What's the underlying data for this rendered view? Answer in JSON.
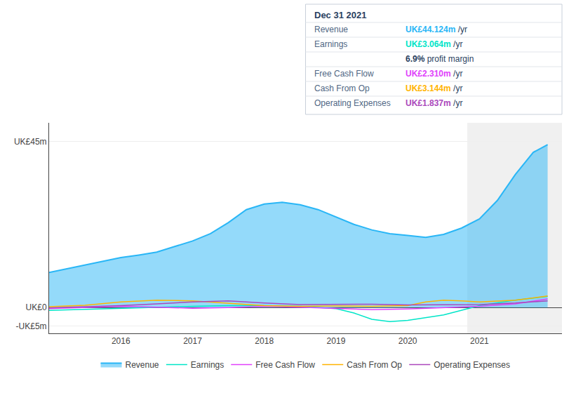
{
  "chart_data": {
    "type": "line",
    "title": "Dec 31 2021",
    "series": [
      {
        "name": "Revenue",
        "type": "area",
        "color": "#29b6f6",
        "x": [
          2015.0,
          2015.25,
          2015.5,
          2015.75,
          2016.0,
          2016.25,
          2016.5,
          2016.75,
          2017.0,
          2017.25,
          2017.5,
          2017.75,
          2018.0,
          2018.25,
          2018.5,
          2018.75,
          2019.0,
          2019.25,
          2019.5,
          2019.75,
          2020.0,
          2020.25,
          2020.5,
          2020.75,
          2021.0,
          2021.25,
          2021.5,
          2021.75,
          2021.95
        ],
        "values": [
          9.5,
          10.5,
          11.5,
          12.5,
          13.5,
          14.2,
          15.0,
          16.5,
          18.0,
          20.0,
          23.0,
          26.5,
          28.0,
          28.5,
          27.8,
          26.5,
          24.5,
          22.5,
          21.0,
          20.0,
          19.5,
          19.0,
          19.8,
          21.5,
          24.0,
          29.0,
          36.0,
          42.0,
          44.1
        ]
      },
      {
        "name": "Earnings",
        "type": "line",
        "color": "#00e5c8",
        "x": [
          2015.0,
          2015.5,
          2016.0,
          2016.5,
          2017.0,
          2017.5,
          2018.0,
          2018.5,
          2019.0,
          2019.25,
          2019.5,
          2019.75,
          2020.0,
          2020.5,
          2021.0,
          2021.5,
          2021.95
        ],
        "values": [
          -0.8,
          -0.5,
          -0.2,
          0.1,
          0.3,
          0.5,
          0.5,
          0.3,
          -0.3,
          -1.5,
          -3.2,
          -3.8,
          -3.5,
          -2.0,
          0.5,
          2.0,
          3.0
        ]
      },
      {
        "name": "Free Cash Flow",
        "type": "line",
        "color": "#e040fb",
        "x": [
          2015.0,
          2015.5,
          2016.0,
          2016.5,
          2017.0,
          2017.5,
          2018.0,
          2018.5,
          2019.0,
          2019.5,
          2020.0,
          2020.5,
          2021.0,
          2021.5,
          2021.95
        ],
        "values": [
          -0.3,
          0.0,
          0.3,
          0.1,
          -0.2,
          0.0,
          0.3,
          0.1,
          -0.3,
          -0.6,
          -0.4,
          -0.1,
          0.3,
          1.0,
          2.3
        ]
      },
      {
        "name": "Cash From Op",
        "type": "line",
        "color": "#ffb300",
        "x": [
          2015.0,
          2015.5,
          2016.0,
          2016.5,
          2017.0,
          2017.5,
          2018.0,
          2018.5,
          2019.0,
          2019.5,
          2020.0,
          2020.25,
          2020.5,
          2020.75,
          2021.0,
          2021.5,
          2021.95
        ],
        "values": [
          0.2,
          0.6,
          1.5,
          2.0,
          1.8,
          1.2,
          0.5,
          0.3,
          0.4,
          0.3,
          0.5,
          1.5,
          2.0,
          1.8,
          1.5,
          2.0,
          3.1
        ]
      },
      {
        "name": "Operating Expenses",
        "type": "line",
        "color": "#ab47bc",
        "x": [
          2015.0,
          2015.5,
          2016.0,
          2016.5,
          2017.0,
          2017.5,
          2018.0,
          2018.5,
          2019.0,
          2019.5,
          2020.0,
          2020.5,
          2021.0,
          2021.5,
          2021.95
        ],
        "values": [
          -0.1,
          0.2,
          0.5,
          1.0,
          1.5,
          1.8,
          1.2,
          0.8,
          0.8,
          0.9,
          0.7,
          0.7,
          0.8,
          1.2,
          1.8
        ]
      }
    ],
    "xlim": [
      2015.0,
      2022.15
    ],
    "xticks": [
      2016,
      2017,
      2018,
      2019,
      2020,
      2021
    ],
    "ylim": [
      -7,
      50
    ],
    "yticks": [
      {
        "value": -5,
        "label": "-UK£5m"
      },
      {
        "value": 0,
        "label": "UK£0"
      },
      {
        "value": 45,
        "label": "UK£45m"
      }
    ],
    "grid": "y",
    "legend": "bottom",
    "highlight": [
      2020.83,
      2022.15
    ],
    "annotations": [
      {
        "label": "Revenue",
        "text": "UK£44.124m",
        "suffix": " /yr",
        "color": "#29b6f6"
      },
      {
        "label": "Earnings",
        "text": "UK£3.064m",
        "suffix": " /yr",
        "color": "#00e5c8"
      },
      {
        "text": "6.9%",
        "suffix": " profit margin"
      },
      {
        "label": "Free Cash Flow",
        "text": "UK£2.310m",
        "suffix": " /yr",
        "color": "#e040fb"
      },
      {
        "label": "Cash From Op",
        "text": "UK£3.144m",
        "suffix": " /yr",
        "color": "#ffb300"
      },
      {
        "label": "Operating Expenses",
        "text": "UK£1.837m",
        "suffix": " /yr",
        "color": "#ab47bc"
      }
    ]
  }
}
